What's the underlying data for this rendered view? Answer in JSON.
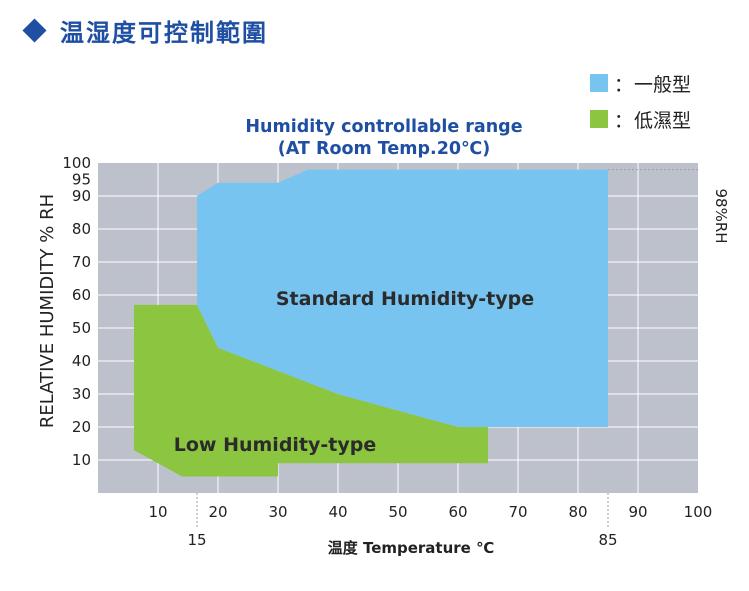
{
  "page_title": "温湿度可控制範圍",
  "chart_data": {
    "type": "area",
    "title_line1": "Humidity controllable range",
    "title_line2": "(AT Room Temp.20℃)",
    "xlabel": "温度 Temperature ℃",
    "ylabel": "RELATIVE HUMIDITY % RH",
    "right_label": "98%RH",
    "xlim": [
      0,
      100
    ],
    "ylim": [
      0,
      100
    ],
    "x_ticks": [
      "10",
      "20",
      "30",
      "40",
      "50",
      "60",
      "70",
      "80",
      "90",
      "100"
    ],
    "x_ticks_secondary": [
      "15",
      "85"
    ],
    "y_ticks": [
      "10",
      "20",
      "30",
      "40",
      "50",
      "60",
      "70",
      "80",
      "90",
      "95",
      "100"
    ],
    "regions": [
      {
        "name": "Standard Humidity-type",
        "legend_label": "一般型",
        "color": "#77c4f1",
        "points": [
          [
            16.5,
            90
          ],
          [
            20,
            94
          ],
          [
            30,
            94
          ],
          [
            35,
            98
          ],
          [
            85,
            98
          ],
          [
            85,
            20
          ],
          [
            60,
            20
          ],
          [
            40,
            30
          ],
          [
            20,
            44
          ],
          [
            16.5,
            57
          ],
          [
            16.5,
            90
          ]
        ]
      },
      {
        "name": "Low Humidity-type",
        "legend_label": "低濕型",
        "color": "#8cc53f",
        "points": [
          [
            6,
            57
          ],
          [
            16.5,
            57
          ],
          [
            20,
            44
          ],
          [
            40,
            30
          ],
          [
            60,
            20
          ],
          [
            65,
            20
          ],
          [
            65,
            9
          ],
          [
            30,
            9
          ],
          [
            30,
            5
          ],
          [
            14,
            5
          ],
          [
            10,
            9
          ],
          [
            6,
            13
          ],
          [
            6,
            57
          ]
        ]
      }
    ],
    "legend": {
      "placement": "top-right",
      "separator": "："
    }
  }
}
